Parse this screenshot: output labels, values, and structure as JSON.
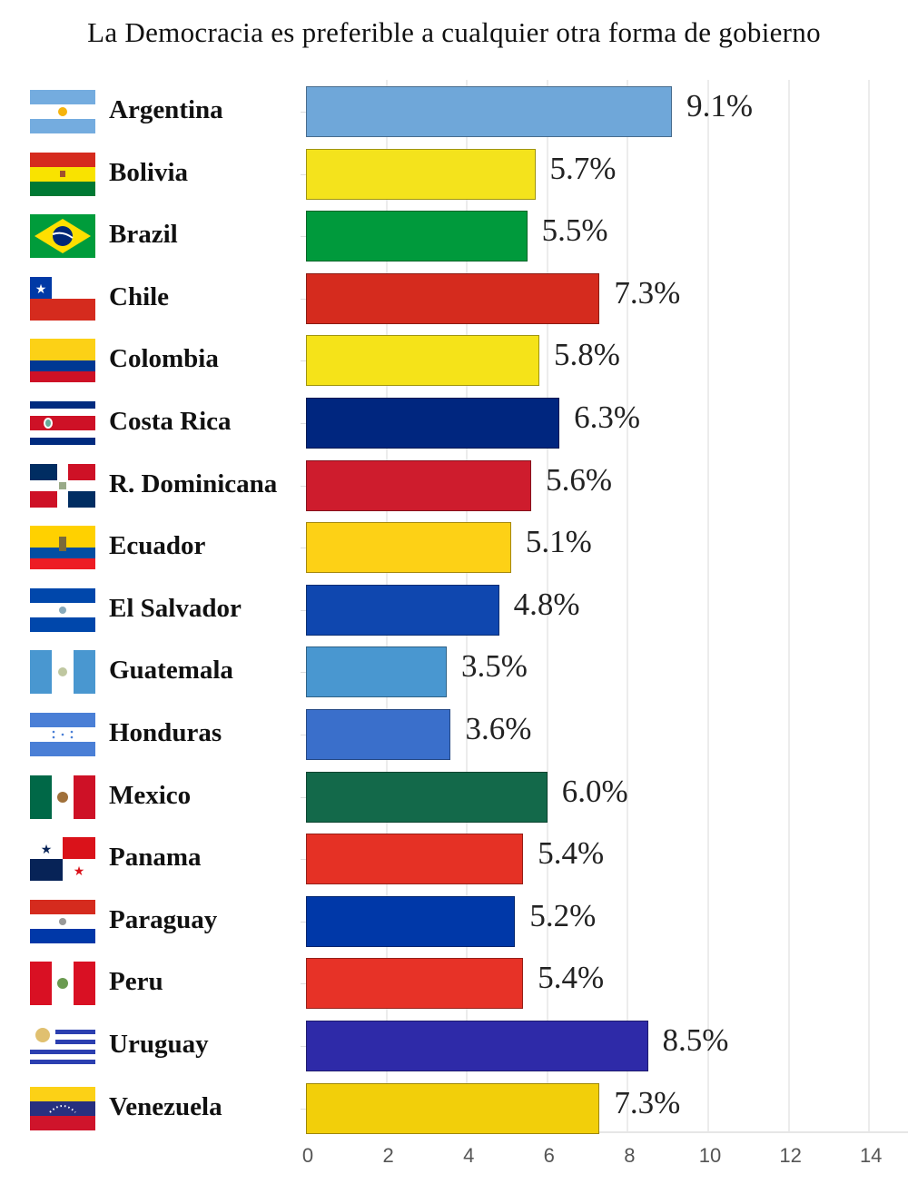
{
  "title": "La Democracia es preferible a cualquier otra forma de gobierno",
  "axis": {
    "ticks": [
      "0",
      "2",
      "4",
      "6",
      "8",
      "10",
      "12",
      "14"
    ]
  },
  "rows": [
    {
      "country": "Argentina",
      "label": "9.1%",
      "value": 9.1,
      "color": "#6fa7d9",
      "flag": "argentina"
    },
    {
      "country": "Bolivia",
      "label": "5.7%",
      "value": 5.7,
      "color": "#f4e31c",
      "flag": "bolivia"
    },
    {
      "country": "Brazil",
      "label": "5.5%",
      "value": 5.5,
      "color": "#009a3c",
      "flag": "brazil"
    },
    {
      "country": "Chile",
      "label": "7.3%",
      "value": 7.3,
      "color": "#d52b1e",
      "flag": "chile"
    },
    {
      "country": "Colombia",
      "label": "5.8%",
      "value": 5.8,
      "color": "#f5e319",
      "flag": "colombia"
    },
    {
      "country": "Costa Rica",
      "label": "6.3%",
      "value": 6.3,
      "color": "#00267f",
      "flag": "costarica"
    },
    {
      "country": "R. Dominicana",
      "label": "5.6%",
      "value": 5.6,
      "color": "#ce1c2d",
      "flag": "dominicana"
    },
    {
      "country": "Ecuador",
      "label": "5.1%",
      "value": 5.1,
      "color": "#fdd116",
      "flag": "ecuador"
    },
    {
      "country": "El Salvador",
      "label": "4.8%",
      "value": 4.8,
      "color": "#0f47af",
      "flag": "elsalvador"
    },
    {
      "country": "Guatemala",
      "label": "3.5%",
      "value": 3.5,
      "color": "#4997d0",
      "flag": "guatemala"
    },
    {
      "country": "Honduras",
      "label": "3.6%",
      "value": 3.6,
      "color": "#3a6fcb",
      "flag": "honduras"
    },
    {
      "country": "Mexico",
      "label": "6.0%",
      "value": 6.0,
      "color": "#13694a",
      "flag": "mexico"
    },
    {
      "country": "Panama",
      "label": "5.4%",
      "value": 5.4,
      "color": "#e53125",
      "flag": "panama"
    },
    {
      "country": "Paraguay",
      "label": "5.2%",
      "value": 5.2,
      "color": "#0038a8",
      "flag": "paraguay"
    },
    {
      "country": "Peru",
      "label": "5.4%",
      "value": 5.4,
      "color": "#e73227",
      "flag": "peru"
    },
    {
      "country": "Uruguay",
      "label": "8.5%",
      "value": 8.5,
      "color": "#2e2aa8",
      "flag": "uruguay"
    },
    {
      "country": "Venezuela",
      "label": "7.3%",
      "value": 7.3,
      "color": "#f2cf0a",
      "flag": "venezuela"
    }
  ],
  "chart_data": {
    "type": "bar",
    "orientation": "horizontal",
    "title": "La Democracia es preferible a cualquier otra forma de gobierno",
    "categories": [
      "Argentina",
      "Bolivia",
      "Brazil",
      "Chile",
      "Colombia",
      "Costa Rica",
      "R. Dominicana",
      "Ecuador",
      "El Salvador",
      "Guatemala",
      "Honduras",
      "Mexico",
      "Panama",
      "Paraguay",
      "Peru",
      "Uruguay",
      "Venezuela"
    ],
    "values": [
      9.1,
      5.7,
      5.5,
      7.3,
      5.8,
      6.3,
      5.6,
      5.1,
      4.8,
      3.5,
      3.6,
      6.0,
      5.4,
      5.2,
      5.4,
      8.5,
      7.3
    ],
    "data_labels": [
      "9.1%",
      "5.7%",
      "5.5%",
      "7.3%",
      "5.8%",
      "6.3%",
      "5.6%",
      "5.1%",
      "4.8%",
      "3.5%",
      "3.6%",
      "6.0%",
      "5.4%",
      "5.2%",
      "5.4%",
      "8.5%",
      "7.3%"
    ],
    "colors": [
      "#6fa7d9",
      "#f4e31c",
      "#009a3c",
      "#d52b1e",
      "#f5e319",
      "#00267f",
      "#ce1c2d",
      "#fdd116",
      "#0f47af",
      "#4997d0",
      "#3a6fcb",
      "#13694a",
      "#e53125",
      "#0038a8",
      "#e73227",
      "#2e2aa8",
      "#f2cf0a"
    ],
    "xlabel": "",
    "ylabel": "",
    "xlim": [
      0,
      15
    ],
    "xticks": [
      0,
      2,
      4,
      6,
      8,
      10,
      12,
      14
    ],
    "grid": true,
    "legend": "none"
  }
}
